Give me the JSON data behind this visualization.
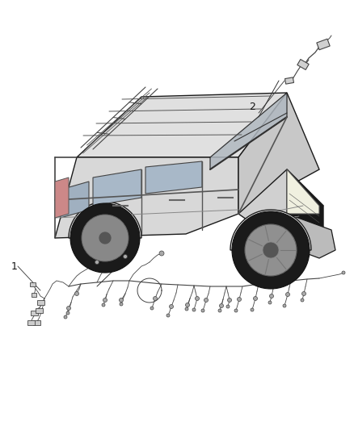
{
  "background_color": "#ffffff",
  "fig_width": 4.38,
  "fig_height": 5.33,
  "dpi": 100,
  "label_1": "1",
  "label_2": "2",
  "line_color": "#1a1a1a",
  "wiring_color": "#444444",
  "font_size_label": 9,
  "car_body_color": "#f5f5f5",
  "car_dark_color": "#222222",
  "car_mid_color": "#cccccc",
  "car_roof_color": "#e8e8e8"
}
